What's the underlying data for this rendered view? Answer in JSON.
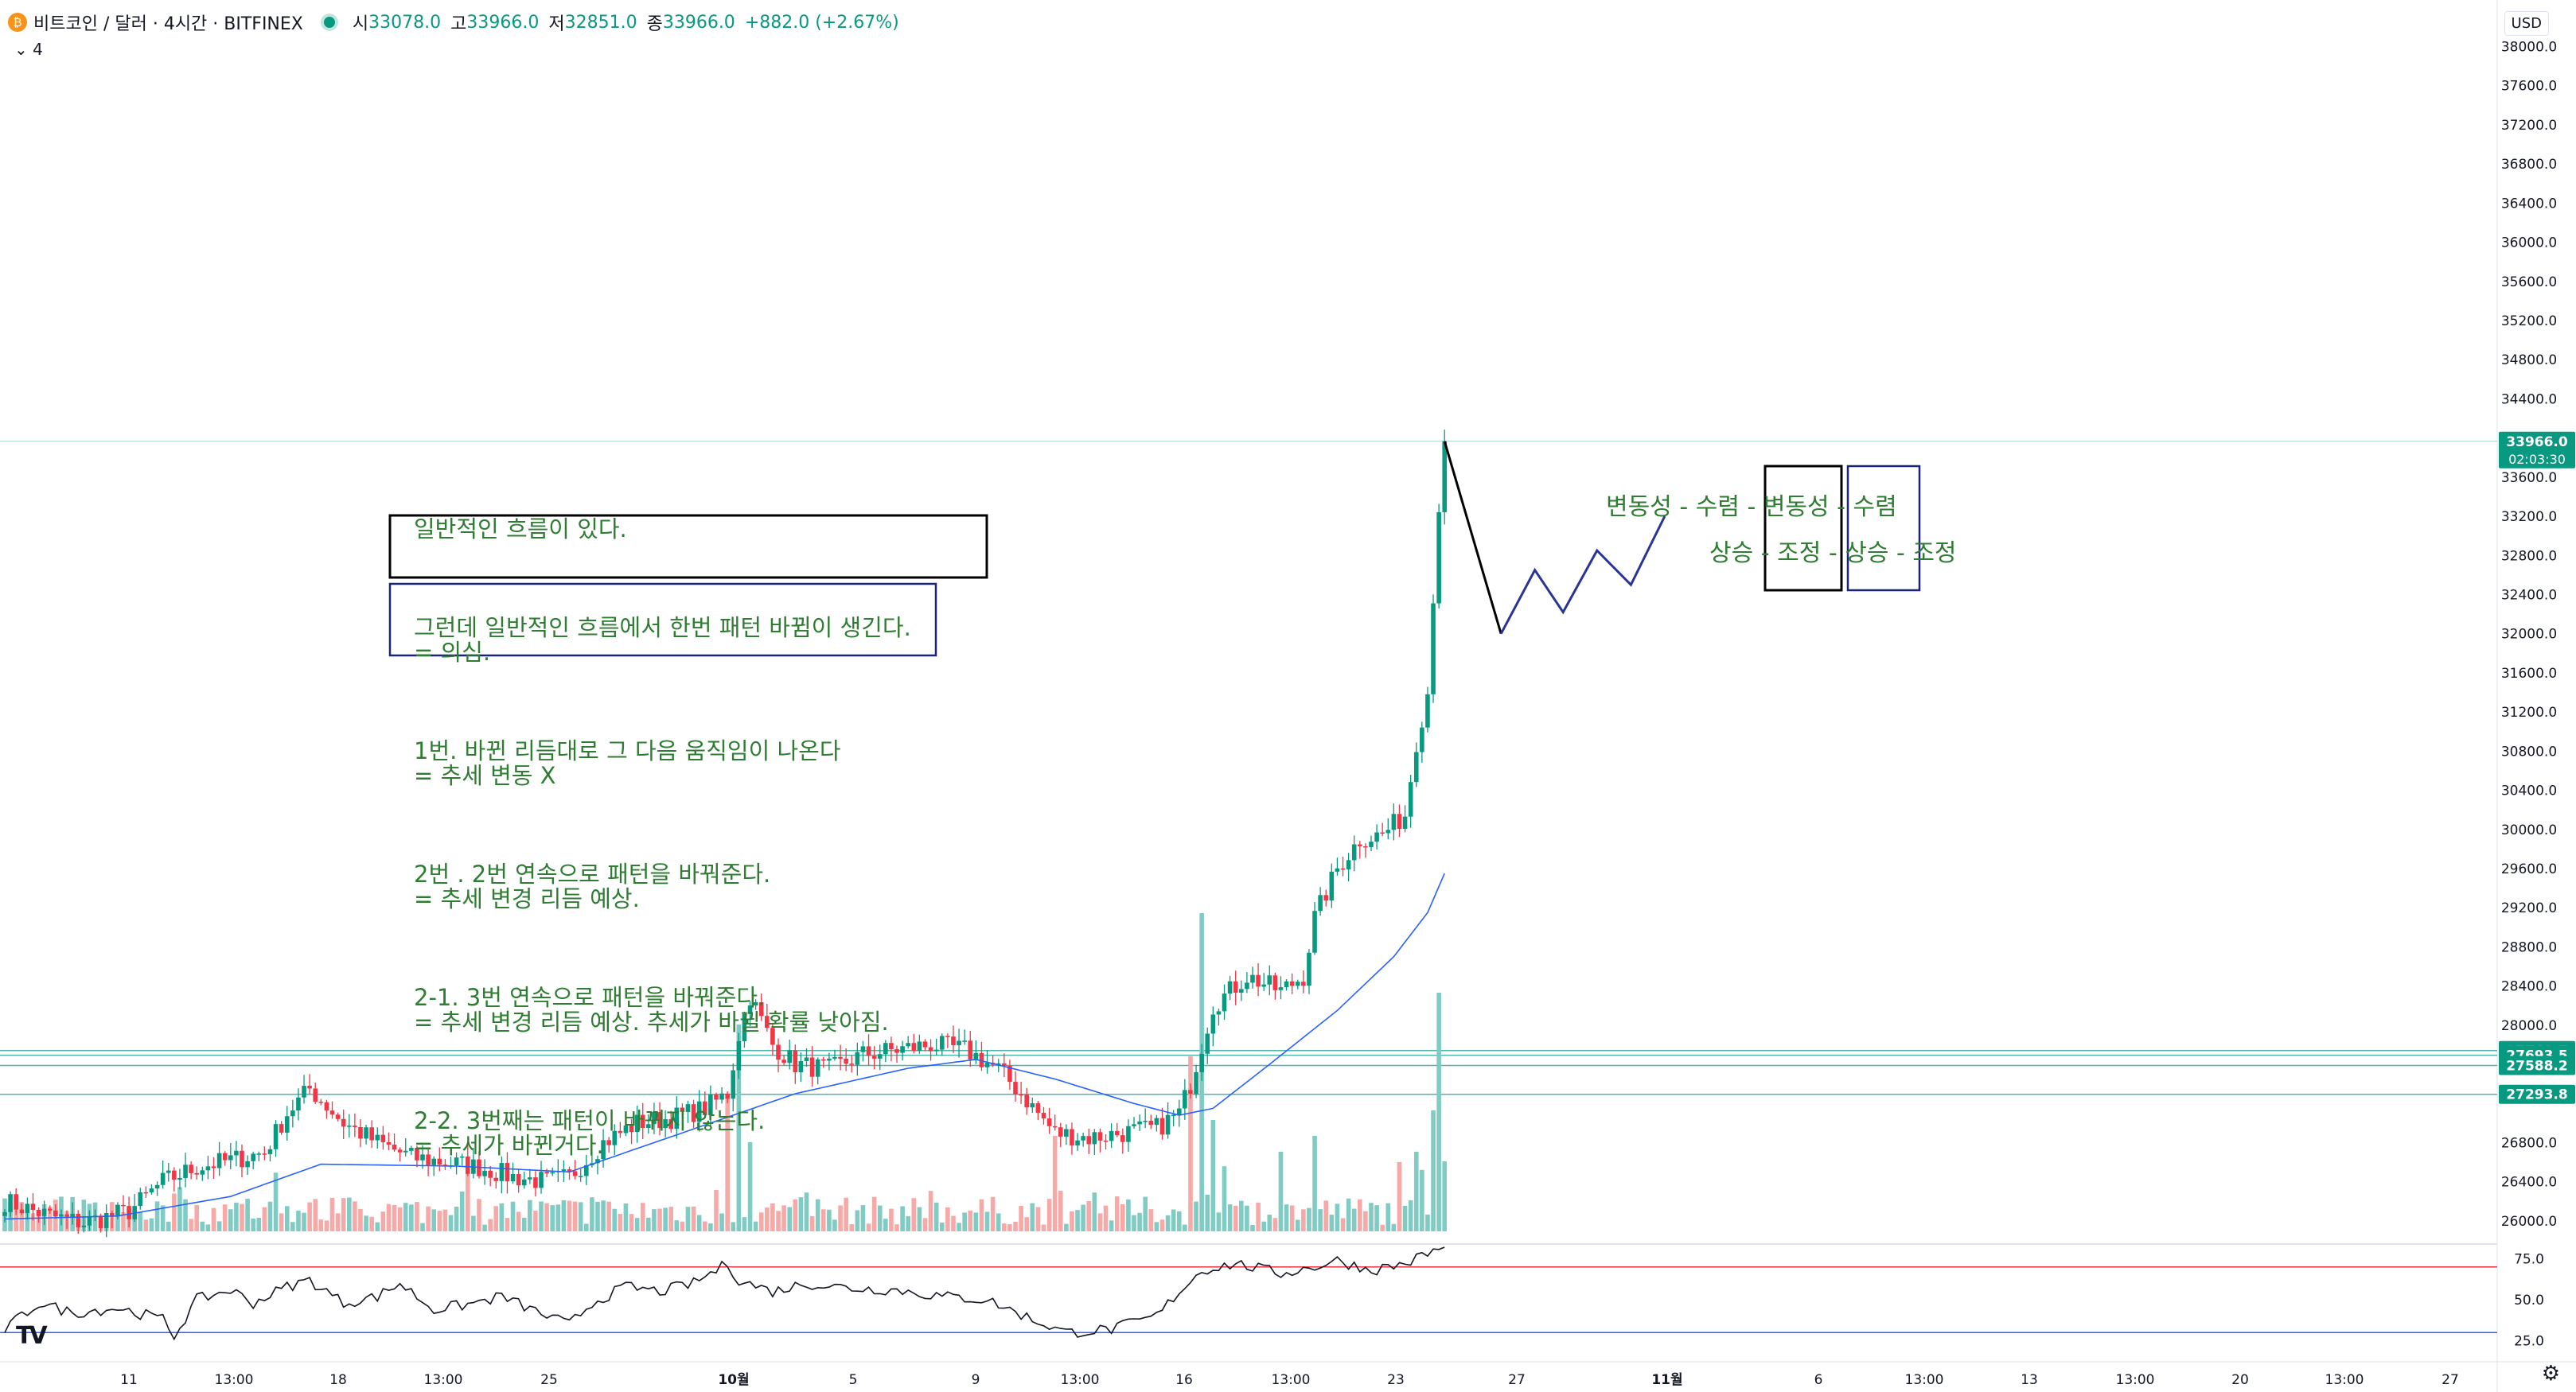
{
  "header": {
    "symbol": "비트코인 / 달러 · 4시간 · BITFINEX",
    "open_label": "시",
    "open": "33078.0",
    "high_label": "고",
    "high": "33966.0",
    "low_label": "저",
    "low": "32851.0",
    "close_label": "종",
    "close": "33966.0",
    "change": "+882.0 (+2.67%)",
    "coin_icon": "bitcoin-icon",
    "indicator_toggle": "4"
  },
  "currency": "USD",
  "colors": {
    "up": "#089981",
    "down": "#f23645",
    "volume_up": "#80cbc4",
    "volume_down": "#f7a9a7",
    "ma": "#2962ff",
    "annotation_text": "#2e7d32",
    "box_black": "#000000",
    "box_blue": "#1a237e"
  },
  "annotations": {
    "notes": [
      [
        "일반적인 흐름이 있다."
      ],
      [
        "그런데 일반적인 흐름에서 한번 패턴 바뀜이 생긴다.",
        "= 의심."
      ],
      [
        "1번. 바뀐 리듬대로 그 다음 움직임이 나온다",
        "= 추세 변동 X"
      ],
      [
        "2번 . 2번 연속으로 패턴을 바꿔준다.",
        "= 추세 변경 리듬 예상."
      ],
      [
        "2-1. 3번 연속으로 패턴을 바꿔준다.",
        "= 추세 변경 리듬 예상. 추세가 바뀔 확률 낮아짐."
      ],
      [
        "2-2. 3번째는 패턴이 바뀌지 않는다.",
        "= 추세가 바뀐거다."
      ]
    ],
    "rhythm_top": [
      "변동성",
      " - ",
      "수렴",
      " - ",
      "변동성",
      " - ",
      "수렴"
    ],
    "rhythm_bottom": [
      "상승",
      " - ",
      "조정",
      " - ",
      "상승",
      " - ",
      "조정"
    ]
  },
  "chart_data": {
    "type": "candlestick",
    "title": "비트코인 / 달러 · 4시간 · BITFINEX",
    "y_axis": {
      "ticks": [
        "38000.0",
        "37600.0",
        "37200.0",
        "36800.0",
        "36400.0",
        "36000.0",
        "35600.0",
        "35200.0",
        "34800.0",
        "34400.0",
        "33600.0",
        "33200.0",
        "32800.0",
        "32400.0",
        "32000.0",
        "31600.0",
        "31200.0",
        "30800.0",
        "30400.0",
        "30000.0",
        "29600.0",
        "29200.0",
        "28800.0",
        "28400.0",
        "28000.0",
        "26800.0",
        "26400.0",
        "26000.0"
      ],
      "range": [
        25780,
        38150
      ]
    },
    "rsi_axis": {
      "ticks": [
        "75.0",
        "50.0",
        "25.0"
      ],
      "range": [
        18,
        82
      ],
      "levels": [
        70,
        30
      ]
    },
    "x_axis": {
      "ticks": [
        "11",
        "13:00",
        "18",
        "13:00",
        "25",
        "10월",
        "5",
        "9",
        "13:00",
        "16",
        "13:00",
        "23",
        "27",
        "11월",
        "6",
        "13:00",
        "13",
        "13:00",
        "20",
        "13:00",
        "27"
      ],
      "bars_per_day": 6
    },
    "price_labels": [
      {
        "value": "33966.0",
        "sub": "02:03:30",
        "price": 33966,
        "color": "#089981"
      },
      {
        "value": "27740.7",
        "price": 27740.7,
        "color": "#089981"
      },
      {
        "value": "27693.5",
        "price": 27693.5,
        "color": "#089981"
      },
      {
        "value": "27588.2",
        "price": 27588.2,
        "color": "#089981"
      },
      {
        "value": "27293.8",
        "price": 27293.8,
        "color": "#089981"
      }
    ],
    "anchors": [
      [
        0,
        26200
      ],
      [
        8,
        26050
      ],
      [
        14,
        25980
      ],
      [
        22,
        26100
      ],
      [
        28,
        26400
      ],
      [
        34,
        26550
      ],
      [
        40,
        26620
      ],
      [
        46,
        26700
      ],
      [
        50,
        27100
      ],
      [
        54,
        27350
      ],
      [
        60,
        27000
      ],
      [
        66,
        26800
      ],
      [
        72,
        26650
      ],
      [
        78,
        26600
      ],
      [
        84,
        26550
      ],
      [
        90,
        26450
      ],
      [
        96,
        26400
      ],
      [
        100,
        26450
      ],
      [
        106,
        26800
      ],
      [
        112,
        27000
      ],
      [
        118,
        27050
      ],
      [
        124,
        27150
      ],
      [
        128,
        27300
      ],
      [
        130,
        27900
      ],
      [
        132,
        28300
      ],
      [
        136,
        27800
      ],
      [
        140,
        27600
      ],
      [
        146,
        27550
      ],
      [
        152,
        27700
      ],
      [
        158,
        27750
      ],
      [
        164,
        27800
      ],
      [
        170,
        27750
      ],
      [
        176,
        27550
      ],
      [
        180,
        27300
      ],
      [
        186,
        26900
      ],
      [
        192,
        26850
      ],
      [
        198,
        26900
      ],
      [
        204,
        26950
      ],
      [
        208,
        27100
      ],
      [
        210,
        27400
      ],
      [
        212,
        27800
      ],
      [
        214,
        28200
      ],
      [
        220,
        28500
      ],
      [
        226,
        28350
      ],
      [
        230,
        28500
      ],
      [
        232,
        29100
      ],
      [
        236,
        29600
      ],
      [
        240,
        29900
      ],
      [
        244,
        29950
      ],
      [
        248,
        30150
      ],
      [
        250,
        30900
      ],
      [
        252,
        31400
      ],
      [
        253,
        32400
      ],
      [
        254,
        33300
      ],
      [
        255,
        33966
      ]
    ],
    "projection": [
      [
        255,
        33966
      ],
      [
        265,
        32000
      ],
      [
        271,
        32650
      ],
      [
        276,
        32220
      ],
      [
        282,
        32850
      ],
      [
        288,
        32500
      ],
      [
        294,
        33200
      ]
    ],
    "rsi_anchors": [
      [
        0,
        32
      ],
      [
        6,
        48
      ],
      [
        12,
        42
      ],
      [
        20,
        45
      ],
      [
        28,
        38
      ],
      [
        30,
        28
      ],
      [
        34,
        50
      ],
      [
        40,
        56
      ],
      [
        44,
        48
      ],
      [
        50,
        58
      ],
      [
        54,
        62
      ],
      [
        60,
        48
      ],
      [
        66,
        52
      ],
      [
        70,
        60
      ],
      [
        76,
        44
      ],
      [
        82,
        47
      ],
      [
        88,
        52
      ],
      [
        96,
        40
      ],
      [
        100,
        35
      ],
      [
        104,
        48
      ],
      [
        110,
        58
      ],
      [
        116,
        55
      ],
      [
        122,
        60
      ],
      [
        128,
        72
      ],
      [
        130,
        62
      ],
      [
        136,
        55
      ],
      [
        142,
        60
      ],
      [
        150,
        57
      ],
      [
        158,
        56
      ],
      [
        166,
        52
      ],
      [
        174,
        50
      ],
      [
        182,
        38
      ],
      [
        188,
        30
      ],
      [
        196,
        32
      ],
      [
        204,
        40
      ],
      [
        208,
        55
      ],
      [
        212,
        68
      ],
      [
        218,
        72
      ],
      [
        226,
        66
      ],
      [
        232,
        70
      ],
      [
        236,
        74
      ],
      [
        242,
        68
      ],
      [
        248,
        72
      ],
      [
        252,
        78
      ],
      [
        255,
        82
      ]
    ],
    "volume_spikes": [
      [
        128,
        0.42
      ],
      [
        130,
        0.65
      ],
      [
        132,
        0.28
      ],
      [
        186,
        0.3
      ],
      [
        210,
        0.55
      ],
      [
        212,
        1.0
      ],
      [
        214,
        0.35
      ],
      [
        226,
        0.25
      ],
      [
        232,
        0.3
      ],
      [
        250,
        0.25
      ],
      [
        253,
        0.38
      ],
      [
        254,
        0.75
      ],
      [
        255,
        0.22
      ]
    ],
    "ma_anchors": [
      [
        0,
        26020
      ],
      [
        20,
        26050
      ],
      [
        40,
        26250
      ],
      [
        56,
        26580
      ],
      [
        80,
        26560
      ],
      [
        100,
        26500
      ],
      [
        120,
        26900
      ],
      [
        140,
        27300
      ],
      [
        160,
        27560
      ],
      [
        172,
        27650
      ],
      [
        186,
        27450
      ],
      [
        200,
        27200
      ],
      [
        208,
        27080
      ],
      [
        214,
        27150
      ],
      [
        224,
        27600
      ],
      [
        236,
        28150
      ],
      [
        246,
        28700
      ],
      [
        252,
        29150
      ],
      [
        255,
        29550
      ]
    ]
  }
}
